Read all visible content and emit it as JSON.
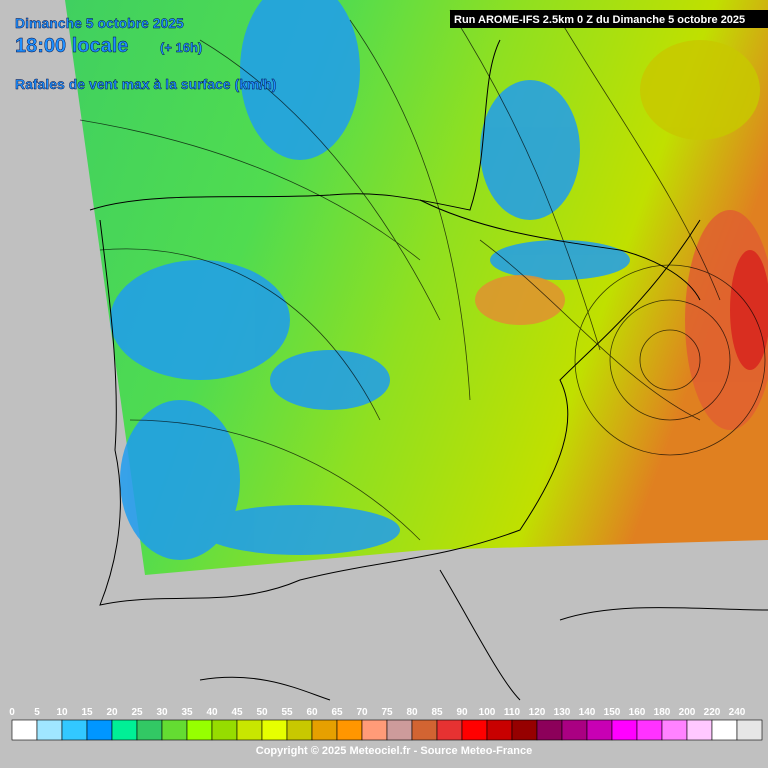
{
  "header": {
    "date": "Dimanche 5 octobre 2025",
    "time": "18:00 locale",
    "lead": "(+ 16h)",
    "parameter": "Rafales de vent max à la surface (km/h)",
    "run": "Run AROME-IFS 2.5km 0 Z du Dimanche 5 octobre 2025"
  },
  "legend": {
    "labels": [
      0,
      5,
      10,
      15,
      20,
      25,
      30,
      35,
      40,
      45,
      50,
      55,
      60,
      65,
      70,
      75,
      80,
      85,
      90,
      100,
      110,
      120,
      130,
      140,
      150,
      160,
      180,
      200,
      220,
      240
    ],
    "colors": [
      "#ffffff",
      "#a0e6ff",
      "#32c8ff",
      "#0096ff",
      "#00f096",
      "#32c864",
      "#64dc32",
      "#96ff00",
      "#96dc00",
      "#c8e600",
      "#e6ff00",
      "#c8c800",
      "#e6a000",
      "#ff9600",
      "#ff9b78",
      "#cd9b9b",
      "#d26432",
      "#e63232",
      "#ff0000",
      "#c80000",
      "#960000",
      "#8c005a",
      "#aa0082",
      "#c800b4",
      "#ff00ff",
      "#ff32ff",
      "#ff82ff",
      "#ffc8ff",
      "#ffffff",
      "#e6e6e6"
    ]
  },
  "footer": {
    "copyright": "Copyright © 2025 Meteociel.fr - Source Meteo-France"
  }
}
